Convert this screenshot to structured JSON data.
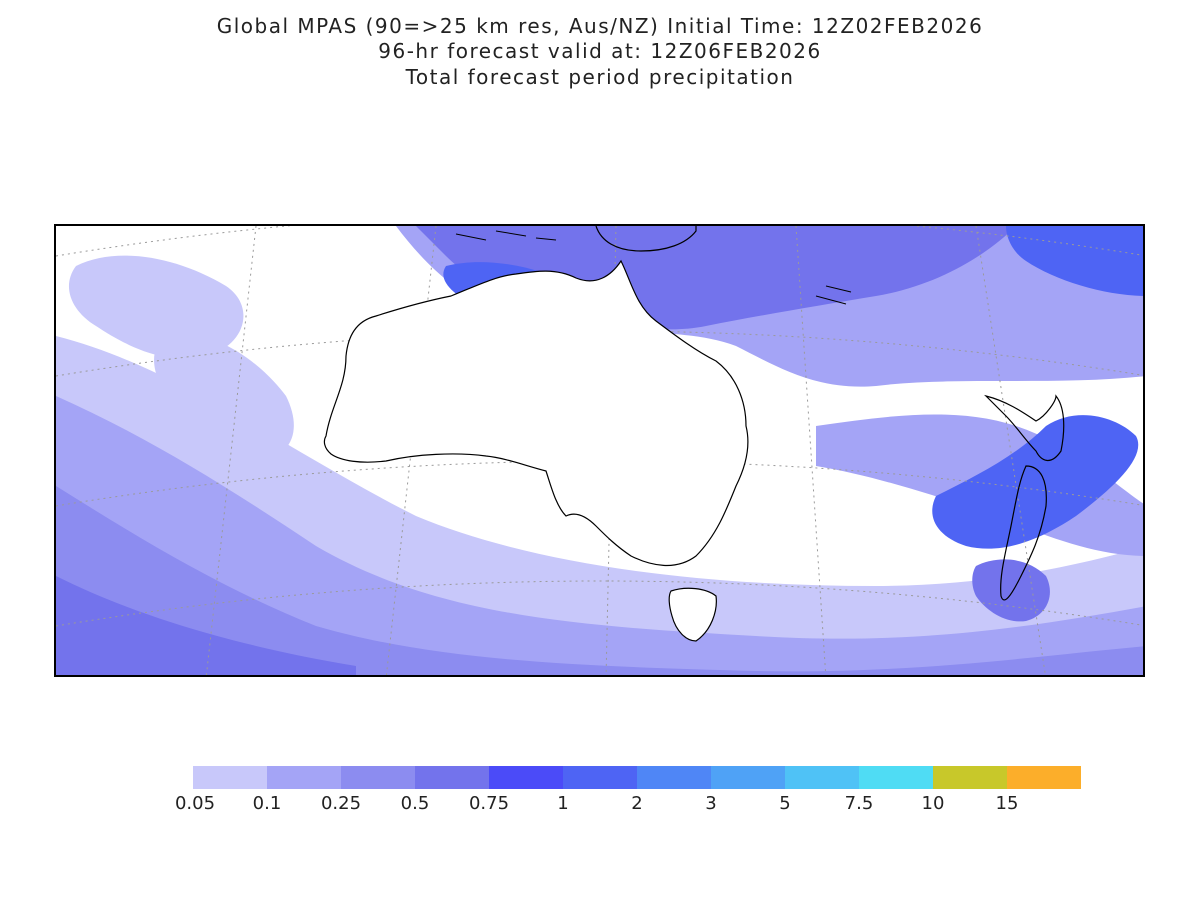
{
  "header": {
    "line1": "Global MPAS (90=>25 km res, Aus/NZ) Initial Time: 12Z02FEB2026",
    "line2": "96-hr forecast valid at: 12Z06FEB2026",
    "line3": "Total forecast period precipitation"
  },
  "colorbar": {
    "levels": [
      "0.05",
      "0.1",
      "0.25",
      "0.5",
      "0.75",
      "1",
      "2",
      "3",
      "5",
      "7.5",
      "10",
      "15"
    ],
    "colors": [
      "#c8c8fa",
      "#a4a4f6",
      "#8c8cf0",
      "#7373ec",
      "#4b4bf8",
      "#4e64f4",
      "#4f86f6",
      "#4fa2f6",
      "#4fc2f6",
      "#4fdcf4",
      "#c8c82a",
      "#fcae2a"
    ]
  },
  "map": {
    "region": "Australia / New Zealand",
    "colors": {
      "land_outline": "#000000",
      "graticule": "#9a9a9a",
      "background": "#ffffff"
    }
  }
}
